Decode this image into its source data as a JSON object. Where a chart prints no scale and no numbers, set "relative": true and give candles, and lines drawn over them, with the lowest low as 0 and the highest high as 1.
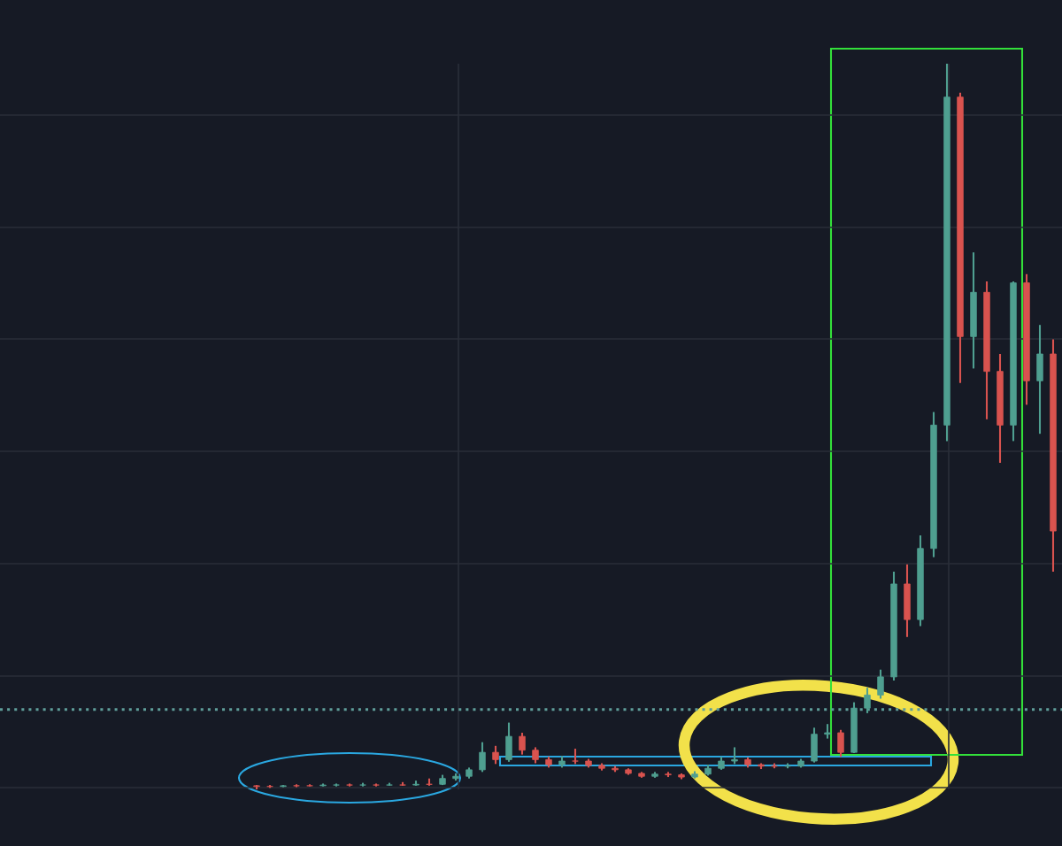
{
  "chart_data": {
    "type": "candlestick",
    "relative": true,
    "grid": true,
    "categories": [
      null,
      null,
      null,
      null,
      null,
      null,
      null,
      null,
      null,
      null,
      null,
      null,
      null,
      null,
      null,
      null,
      null,
      null,
      null,
      null,
      null,
      null,
      null,
      null,
      null,
      null,
      null,
      null,
      null,
      null,
      null,
      null,
      null,
      null,
      null,
      null,
      null,
      null,
      null,
      null,
      null,
      null,
      null,
      null,
      null,
      null,
      null,
      null,
      null,
      null,
      null,
      null,
      null,
      null,
      null,
      null,
      null,
      null,
      null,
      null,
      null
    ],
    "ohlc": [
      [
        0.005,
        0.006,
        0,
        0.004
      ],
      [
        0.004,
        0.006,
        0.002,
        0.004
      ],
      [
        0.004,
        0.006,
        0.003,
        0.005
      ],
      [
        0.005,
        0.007,
        0.003,
        0.005
      ],
      [
        0.005,
        0.007,
        0.004,
        0.005
      ],
      [
        0.005,
        0.008,
        0.004,
        0.006
      ],
      [
        0.006,
        0.008,
        0.004,
        0.006
      ],
      [
        0.006,
        0.008,
        0.004,
        0.006
      ],
      [
        0.006,
        0.009,
        0.004,
        0.006
      ],
      [
        0.006,
        0.008,
        0.004,
        0.006
      ],
      [
        0.006,
        0.009,
        0.005,
        0.006
      ],
      [
        0.006,
        0.01,
        0.005,
        0.006
      ],
      [
        0.006,
        0.012,
        0.005,
        0.007
      ],
      [
        0.007,
        0.015,
        0.005,
        0.007
      ],
      [
        0.007,
        0.02,
        0.006,
        0.015
      ],
      [
        0.015,
        0.022,
        0.012,
        0.018
      ],
      [
        0.018,
        0.03,
        0.015,
        0.027
      ],
      [
        0.027,
        0.065,
        0.024,
        0.051
      ],
      [
        0.051,
        0.06,
        0.035,
        0.041
      ],
      [
        0.041,
        0.092,
        0.038,
        0.073
      ],
      [
        0.073,
        0.078,
        0.048,
        0.054
      ],
      [
        0.054,
        0.058,
        0.036,
        0.041
      ],
      [
        0.041,
        0.045,
        0.03,
        0.034
      ],
      [
        0.034,
        0.046,
        0.03,
        0.039
      ],
      [
        0.039,
        0.056,
        0.035,
        0.039
      ],
      [
        0.039,
        0.042,
        0.03,
        0.033
      ],
      [
        0.033,
        0.036,
        0.026,
        0.029
      ],
      [
        0.029,
        0.032,
        0.024,
        0.027
      ],
      [
        0.027,
        0.029,
        0.02,
        0.022
      ],
      [
        0.022,
        0.024,
        0.016,
        0.018
      ],
      [
        0.018,
        0.024,
        0.016,
        0.021
      ],
      [
        0.021,
        0.024,
        0.017,
        0.02
      ],
      [
        0.02,
        0.022,
        0.014,
        0.017
      ],
      [
        0.017,
        0.025,
        0.015,
        0.021
      ],
      [
        0.021,
        0.034,
        0.019,
        0.029
      ],
      [
        0.029,
        0.045,
        0.027,
        0.039
      ],
      [
        0.039,
        0.058,
        0.035,
        0.041
      ],
      [
        0.041,
        0.044,
        0.03,
        0.034
      ],
      [
        0.034,
        0.036,
        0.028,
        0.032
      ],
      [
        0.032,
        0.036,
        0.029,
        0.032
      ],
      [
        0.032,
        0.036,
        0.029,
        0.032
      ],
      [
        0.032,
        0.042,
        0.03,
        0.039
      ],
      [
        0.039,
        0.085,
        0.037,
        0.076
      ],
      [
        0.076,
        0.09,
        0.07,
        0.078
      ],
      [
        0.078,
        0.082,
        0.045,
        0.051
      ],
      [
        0.051,
        0.12,
        0.05,
        0.112
      ],
      [
        0.112,
        0.14,
        0.105,
        0.13
      ],
      [
        0.13,
        0.165,
        0.125,
        0.155
      ],
      [
        0.155,
        0.3,
        0.15,
        0.283
      ],
      [
        0.283,
        0.31,
        0.21,
        0.234
      ],
      [
        0.234,
        0.35,
        0.225,
        0.332
      ],
      [
        0.332,
        0.52,
        0.32,
        0.502
      ],
      [
        0.502,
        1,
        0.48,
        0.954
      ],
      [
        0.954,
        0.96,
        0.56,
        0.624
      ],
      [
        0.624,
        0.74,
        0.58,
        0.685
      ],
      [
        0.685,
        0.7,
        0.51,
        0.576
      ],
      [
        0.576,
        0.6,
        0.45,
        0.502
      ],
      [
        0.502,
        0.7,
        0.48,
        0.698
      ],
      [
        0.698,
        0.71,
        0.53,
        0.563
      ],
      [
        0.563,
        0.64,
        0.49,
        0.6
      ],
      [
        0.6,
        0.62,
        0.3,
        0.356
      ]
    ],
    "colors": [
      "#d9534f",
      "#d9534f",
      "#4f9f90",
      "#d9534f",
      "#d9534f",
      "#4f9f90",
      "#4f9f90",
      "#d9534f",
      "#4f9f90",
      "#d9534f",
      "#4f9f90",
      "#d9534f",
      "#4f9f90",
      "#d9534f",
      "#4f9f90",
      "#4f9f90",
      "#4f9f90",
      "#4f9f90",
      "#d9534f",
      "#4f9f90",
      "#d9534f",
      "#d9534f",
      "#d9534f",
      "#4f9f90",
      "#d9534f",
      "#d9534f",
      "#d9534f",
      "#d9534f",
      "#d9534f",
      "#d9534f",
      "#4f9f90",
      "#d9534f",
      "#d9534f",
      "#4f9f90",
      "#4f9f90",
      "#4f9f90",
      "#4f9f90",
      "#d9534f",
      "#d9534f",
      "#d9534f",
      "#4f9f90",
      "#4f9f90",
      "#4f9f90",
      "#4f9f90",
      "#d9534f",
      "#4f9f90",
      "#4f9f90",
      "#4f9f90",
      "#4f9f90",
      "#d9534f",
      "#4f9f90",
      "#4f9f90",
      "#4f9f90",
      "#d9534f",
      "#4f9f90",
      "#d9534f",
      "#d9534f",
      "#4f9f90",
      "#d9534f",
      "#4f9f90",
      "#d9534f"
    ],
    "ref_lines": [
      {
        "axis": "y",
        "value": 0.11,
        "color": "#5f9e9a",
        "line_style": "dotted"
      }
    ]
  }
}
